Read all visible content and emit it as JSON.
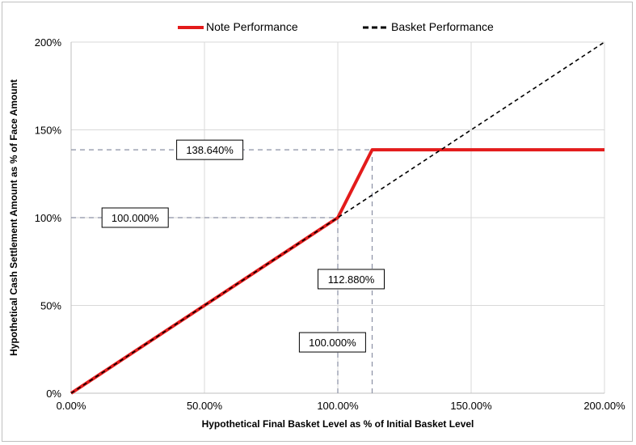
{
  "chart_data": {
    "type": "line",
    "xlabel": "Hypothetical Final Basket Level as % of Initial Basket Level",
    "ylabel": "Hypothetical Cash Settlement Amount as % of Face Amount",
    "xlim": [
      0,
      200
    ],
    "ylim": [
      0,
      200
    ],
    "x_ticks": [
      0,
      50,
      100,
      150,
      200
    ],
    "x_tick_labels": [
      "0.00%",
      "50.00%",
      "100.00%",
      "150.00%",
      "200.00%"
    ],
    "y_ticks": [
      0,
      50,
      100,
      150,
      200
    ],
    "y_tick_labels": [
      "0%",
      "50%",
      "100%",
      "150%",
      "200%"
    ],
    "grid": true,
    "legend_position": "top-center",
    "series": [
      {
        "name": "Note Performance",
        "color": "#e31b1b",
        "style": "solid",
        "x": [
          0,
          100,
          112.88,
          200
        ],
        "y": [
          0,
          100,
          138.64,
          138.64
        ]
      },
      {
        "name": "Basket Performance",
        "color": "#000000",
        "style": "dashed",
        "x": [
          0,
          200
        ],
        "y": [
          0,
          200
        ]
      }
    ],
    "reference_lines": [
      {
        "orientation": "horizontal",
        "value": 138.64,
        "from": 0,
        "to": 112.88
      },
      {
        "orientation": "horizontal",
        "value": 100,
        "from": 0,
        "to": 100
      },
      {
        "orientation": "vertical",
        "value": 100,
        "from": 0,
        "to": 100
      },
      {
        "orientation": "vertical",
        "value": 112.88,
        "from": 0,
        "to": 138.64
      }
    ],
    "annotations": [
      {
        "text": "138.640%",
        "x": 52,
        "y": 138.64
      },
      {
        "text": "100.000%",
        "x": 24,
        "y": 100
      },
      {
        "text": "112.880%",
        "x": 105,
        "y": 65
      },
      {
        "text": "100.000%",
        "x": 98,
        "y": 29
      }
    ]
  }
}
